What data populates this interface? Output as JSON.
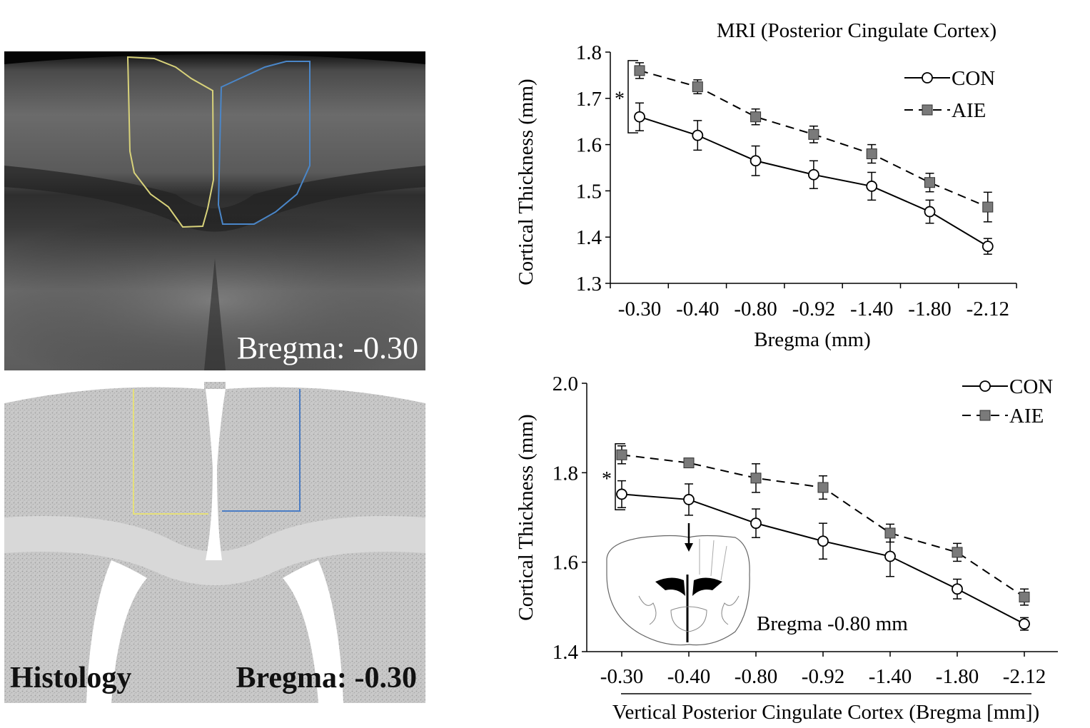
{
  "images": {
    "mri": {
      "label": "Bregma:  -0.30",
      "roi_colors": {
        "left": "#d8d27a",
        "right": "#4a86c8"
      }
    },
    "histology": {
      "label_left": "Histology",
      "label_right": "Bregma: -0.30"
    }
  },
  "chart_data": [
    {
      "type": "line",
      "title": "MRI  (Posterior Cingulate Cortex)",
      "xlabel": "Bregma  (mm)",
      "ylabel": "Cortical Thickness  (mm)",
      "categories": [
        "-0.30",
        "-0.40",
        "-0.80",
        "-0.92",
        "-1.40",
        "-1.80",
        "-2.12"
      ],
      "ylim": [
        1.3,
        1.8
      ],
      "yticks": [
        "1.3",
        "1.4",
        "1.5",
        "1.6",
        "1.7",
        "1.8"
      ],
      "significance_marker": "*",
      "legend_position": "top-right",
      "series": [
        {
          "name": "CON",
          "style": "solid",
          "marker": "open-circle",
          "color": "#000000",
          "values": [
            1.66,
            1.62,
            1.565,
            1.535,
            1.51,
            1.455,
            1.38
          ],
          "errors": [
            0.03,
            0.032,
            0.032,
            0.03,
            0.03,
            0.025,
            0.017
          ]
        },
        {
          "name": "AIE",
          "style": "dashed",
          "marker": "filled-square",
          "color": "#7a7a7a",
          "values": [
            1.76,
            1.725,
            1.66,
            1.622,
            1.58,
            1.518,
            1.465
          ],
          "errors": [
            0.017,
            0.015,
            0.017,
            0.018,
            0.02,
            0.02,
            0.032
          ]
        }
      ]
    },
    {
      "type": "line",
      "title": "",
      "xlabel": "Vertical Posterior Cingulate Cortex (Bregma [mm])",
      "ylabel": "Cortical Thickness  (mm)",
      "categories": [
        "-0.30",
        "-0.40",
        "-0.80",
        "-0.92",
        "-1.40",
        "-1.80",
        "-2.12"
      ],
      "ylim": [
        1.4,
        2.0
      ],
      "yticks": [
        "1.4",
        "1.6",
        "1.8",
        "2.0"
      ],
      "significance_marker": "*",
      "legend_position": "top-right",
      "inset_label": "Bregma  -0.80 mm",
      "series": [
        {
          "name": "CON",
          "style": "solid",
          "marker": "open-circle",
          "color": "#000000",
          "values": [
            1.752,
            1.74,
            1.687,
            1.647,
            1.613,
            1.54,
            1.462
          ],
          "errors": [
            0.03,
            0.035,
            0.032,
            0.04,
            0.045,
            0.022,
            0.014
          ]
        },
        {
          "name": "AIE",
          "style": "dashed",
          "marker": "filled-square",
          "color": "#7a7a7a",
          "values": [
            1.84,
            1.822,
            1.788,
            1.767,
            1.665,
            1.622,
            1.522
          ],
          "errors": [
            0.02,
            0.01,
            0.032,
            0.026,
            0.02,
            0.02,
            0.018
          ]
        }
      ]
    }
  ]
}
